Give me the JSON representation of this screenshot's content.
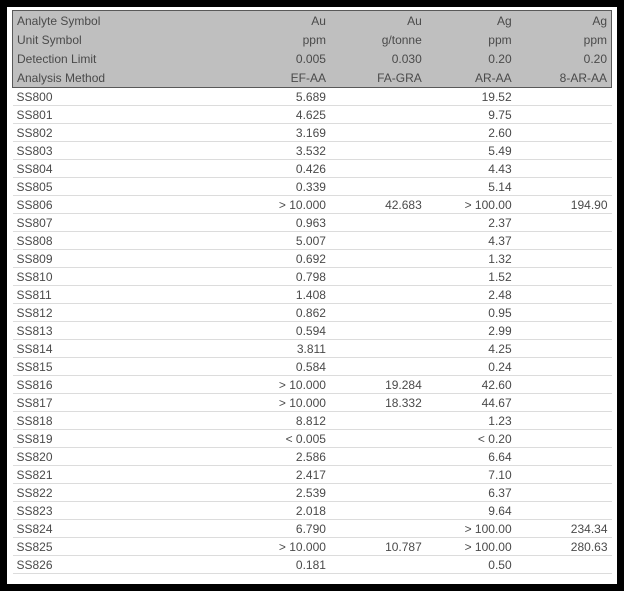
{
  "table": {
    "columns": [
      {
        "analyte": "Au",
        "unit": "ppm",
        "detection_limit": "0.005",
        "analysis_method": "EF-AA"
      },
      {
        "analyte": "Au",
        "unit": "g/tonne",
        "detection_limit": "0.030",
        "analysis_method": "FA-GRA"
      },
      {
        "analyte": "Ag",
        "unit": "ppm",
        "detection_limit": "0.20",
        "analysis_method": "AR-AA"
      },
      {
        "analyte": "Ag",
        "unit": "ppm",
        "detection_limit": "0.20",
        "analysis_method": "8-AR-AA"
      }
    ],
    "header_rows": [
      {
        "label": "Analyte Symbol",
        "values": [
          "Au",
          "Au",
          "Ag",
          "Ag"
        ]
      },
      {
        "label": "Unit Symbol",
        "values": [
          "ppm",
          "g/tonne",
          "ppm",
          "ppm"
        ]
      },
      {
        "label": "Detection Limit",
        "values": [
          "0.005",
          "0.030",
          "0.20",
          "0.20"
        ]
      },
      {
        "label": "Analysis Method",
        "values": [
          "EF-AA",
          "FA-GRA",
          "AR-AA",
          "8-AR-AA"
        ]
      }
    ],
    "samples": [
      {
        "id": "SS800",
        "values": [
          "5.689",
          "",
          "19.52",
          ""
        ]
      },
      {
        "id": "SS801",
        "values": [
          "4.625",
          "",
          "9.75",
          ""
        ]
      },
      {
        "id": "SS802",
        "values": [
          "3.169",
          "",
          "2.60",
          ""
        ]
      },
      {
        "id": "SS803",
        "values": [
          "3.532",
          "",
          "5.49",
          ""
        ]
      },
      {
        "id": "SS804",
        "values": [
          "0.426",
          "",
          "4.43",
          ""
        ]
      },
      {
        "id": "SS805",
        "values": [
          "0.339",
          "",
          "5.14",
          ""
        ]
      },
      {
        "id": "SS806",
        "values": [
          "> 10.000",
          "42.683",
          "> 100.00",
          "194.90"
        ]
      },
      {
        "id": "SS807",
        "values": [
          "0.963",
          "",
          "2.37",
          ""
        ]
      },
      {
        "id": "SS808",
        "values": [
          "5.007",
          "",
          "4.37",
          ""
        ]
      },
      {
        "id": "SS809",
        "values": [
          "0.692",
          "",
          "1.32",
          ""
        ]
      },
      {
        "id": "SS810",
        "values": [
          "0.798",
          "",
          "1.52",
          ""
        ]
      },
      {
        "id": "SS811",
        "values": [
          "1.408",
          "",
          "2.48",
          ""
        ]
      },
      {
        "id": "SS812",
        "values": [
          "0.862",
          "",
          "0.95",
          ""
        ]
      },
      {
        "id": "SS813",
        "values": [
          "0.594",
          "",
          "2.99",
          ""
        ]
      },
      {
        "id": "SS814",
        "values": [
          "3.811",
          "",
          "4.25",
          ""
        ]
      },
      {
        "id": "SS815",
        "values": [
          "0.584",
          "",
          "0.24",
          ""
        ]
      },
      {
        "id": "SS816",
        "values": [
          "> 10.000",
          "19.284",
          "42.60",
          ""
        ]
      },
      {
        "id": "SS817",
        "values": [
          "> 10.000",
          "18.332",
          "44.67",
          ""
        ]
      },
      {
        "id": "SS818",
        "values": [
          "8.812",
          "",
          "1.23",
          ""
        ]
      },
      {
        "id": "SS819",
        "values": [
          "< 0.005",
          "",
          "< 0.20",
          ""
        ]
      },
      {
        "id": "SS820",
        "values": [
          "2.586",
          "",
          "6.64",
          ""
        ]
      },
      {
        "id": "SS821",
        "values": [
          "2.417",
          "",
          "7.10",
          ""
        ]
      },
      {
        "id": "SS822",
        "values": [
          "2.539",
          "",
          "6.37",
          ""
        ]
      },
      {
        "id": "SS823",
        "values": [
          "2.018",
          "",
          "9.64",
          ""
        ]
      },
      {
        "id": "SS824",
        "values": [
          "6.790",
          "",
          "> 100.00",
          "234.34"
        ]
      },
      {
        "id": "SS825",
        "values": [
          "> 10.000",
          "10.787",
          "> 100.00",
          "280.63"
        ]
      },
      {
        "id": "SS826",
        "values": [
          "0.181",
          "",
          "0.50",
          ""
        ]
      }
    ],
    "colors": {
      "header_background": "#bfbfbf",
      "header_border": "#595959",
      "row_separator": "#dcdcdc",
      "text": "#4a4a4a",
      "outer_frame": "#000000"
    }
  }
}
